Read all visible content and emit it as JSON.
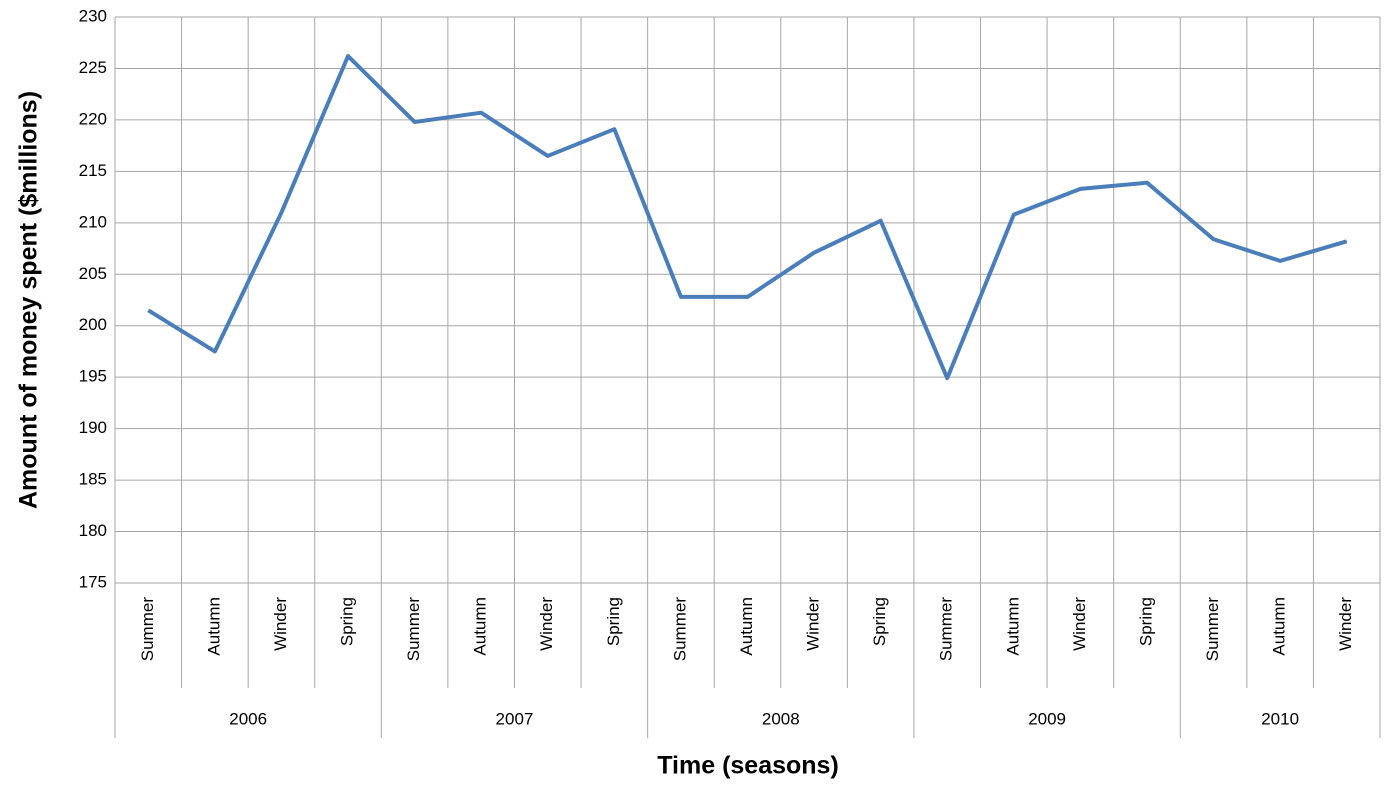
{
  "chart_data": {
    "type": "line",
    "xlabel": "Time (seasons)",
    "ylabel": "Amount of money spent ($millions)",
    "categories": [
      "Summer",
      "Autumn",
      "Winder",
      "Spring",
      "Summer",
      "Autumn",
      "Winder",
      "Spring",
      "Summer",
      "Autumn",
      "Winder",
      "Spring",
      "Summer",
      "Autumn",
      "Winder",
      "Spring",
      "Summer",
      "Autumn",
      "Winder"
    ],
    "groups": [
      {
        "label": "2006",
        "size": 4
      },
      {
        "label": "2007",
        "size": 4
      },
      {
        "label": "2008",
        "size": 4
      },
      {
        "label": "2009",
        "size": 4
      },
      {
        "label": "2010",
        "size": 3
      }
    ],
    "values": [
      201.5,
      197.5,
      211,
      226.2,
      219.8,
      220.7,
      216.5,
      219.1,
      202.8,
      202.8,
      207.1,
      210.2,
      194.9,
      210.8,
      213.3,
      213.9,
      208.4,
      206.3,
      208.2
    ],
    "color": "#4a7ebb",
    "ylim": [
      175,
      230
    ],
    "yticks": [
      175,
      180,
      185,
      190,
      195,
      200,
      205,
      210,
      215,
      220,
      225,
      230
    ],
    "grid": true
  }
}
